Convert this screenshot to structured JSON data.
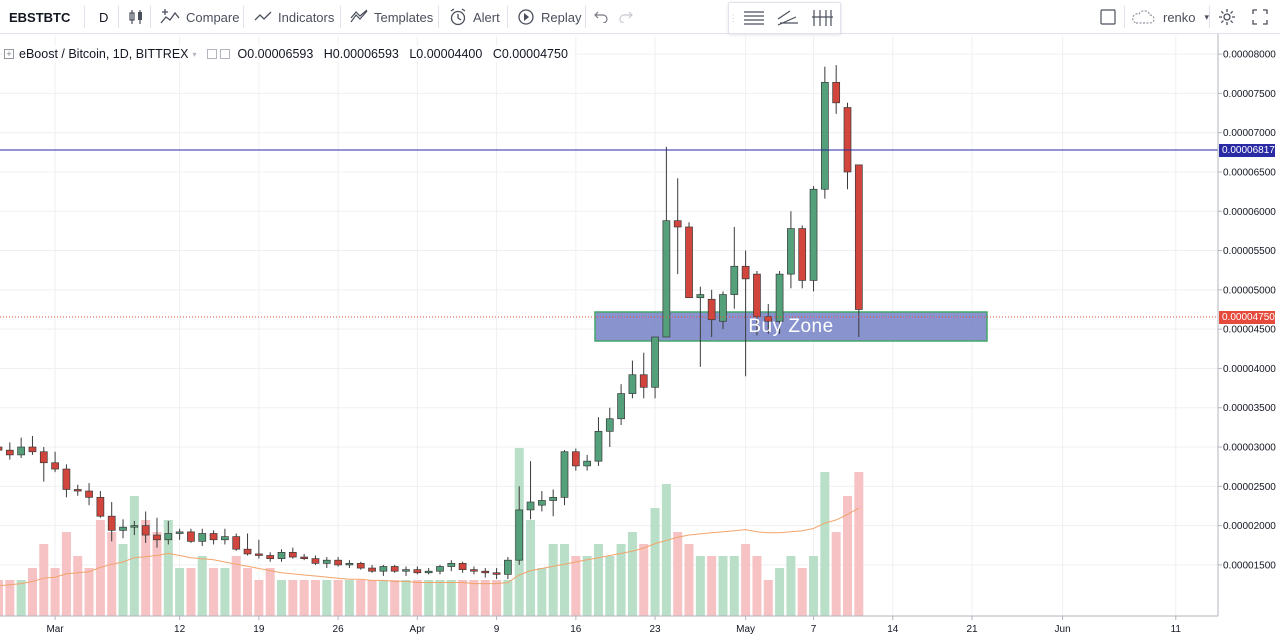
{
  "toolbar": {
    "symbol": "EBSTBTC",
    "interval": "D",
    "compare": "Compare",
    "indicators": "Indicators",
    "templates": "Templates",
    "alert": "Alert",
    "replay": "Replay",
    "layout_name": "renko",
    "icons": [
      "candles-icon",
      "compare-icon",
      "indicators-icon",
      "templates-icon",
      "alert-icon",
      "replay-icon",
      "undo-icon",
      "redo-icon",
      "horizontal-lines-icon",
      "trend-lines-icon",
      "ticks-icon",
      "square-icon",
      "cloud-icon",
      "chevron-down-icon",
      "gear-icon",
      "fullscreen-icon"
    ]
  },
  "legend": {
    "title": "eBoost / Bitcoin, 1D, BITTREX",
    "open": "O0.00006593",
    "high": "H0.00006593",
    "low": "L0.00004400",
    "close": "C0.00004750"
  },
  "annotations": {
    "buy_zone_label": "Buy Zone",
    "horizontal_line_price": "0.00006817",
    "last_price": "0.00004750"
  },
  "colors": {
    "up": "#53a07a",
    "down": "#d2453c",
    "line": "#2a2aa5",
    "buy_zone": "#7481c7",
    "buy_zone_border": "#45a56a",
    "last_price": "#e54a3c",
    "volume_up": "#b9dfc8",
    "volume_down": "#f6c2c4",
    "ma": "#f2a46a"
  },
  "chart_data": {
    "type": "candlestick",
    "title": "eBoost / Bitcoin, 1D, BITTREX",
    "y_ticks": [
      "0.00001500",
      "0.00002000",
      "0.00002500",
      "0.00003000",
      "0.00003500",
      "0.00004000",
      "0.00004500",
      "0.00005000",
      "0.00005500",
      "0.00006000",
      "0.00006500",
      "0.00007000",
      "0.00007500",
      "0.00008000"
    ],
    "x_ticks": [
      "Mar",
      "12",
      "19",
      "26",
      "Apr",
      "9",
      "16",
      "23",
      "May",
      "7",
      "14",
      "21",
      "Jun",
      "11"
    ],
    "ylim": [
      8.5e-06,
      8.23e-05
    ],
    "start_date": "2018-02-24",
    "candles": [
      [
        3e-05,
        3.08e-05,
        2.9e-05,
        2.96e-05,
        3
      ],
      [
        2.96e-05,
        3.06e-05,
        2.84e-05,
        2.9e-05,
        3
      ],
      [
        2.9e-05,
        3.12e-05,
        2.86e-05,
        3e-05,
        3
      ],
      [
        3e-05,
        3.14e-05,
        2.9e-05,
        2.94e-05,
        4
      ],
      [
        2.94e-05,
        3e-05,
        2.56e-05,
        2.8e-05,
        6
      ],
      [
        2.8e-05,
        2.94e-05,
        2.68e-05,
        2.72e-05,
        4
      ],
      [
        2.72e-05,
        2.78e-05,
        2.36e-05,
        2.46e-05,
        7
      ],
      [
        2.46e-05,
        2.52e-05,
        2.38e-05,
        2.44e-05,
        5
      ],
      [
        2.44e-05,
        2.54e-05,
        2.26e-05,
        2.36e-05,
        4
      ],
      [
        2.36e-05,
        2.44e-05,
        2.1e-05,
        2.12e-05,
        8
      ],
      [
        2.12e-05,
        2.3e-05,
        1.8e-05,
        1.94e-05,
        7
      ],
      [
        1.94e-05,
        2.08e-05,
        1.84e-05,
        1.98e-05,
        6
      ],
      [
        1.98e-05,
        2.06e-05,
        1.88e-05,
        2e-05,
        10
      ],
      [
        2e-05,
        2.18e-05,
        1.78e-05,
        1.88e-05,
        8
      ],
      [
        1.88e-05,
        2.1e-05,
        1.72e-05,
        1.82e-05,
        7
      ],
      [
        1.82e-05,
        2.06e-05,
        1.76e-05,
        1.9e-05,
        8
      ],
      [
        1.9e-05,
        1.96e-05,
        1.82e-05,
        1.92e-05,
        4
      ],
      [
        1.92e-05,
        1.96e-05,
        1.78e-05,
        1.8e-05,
        4
      ],
      [
        1.8e-05,
        1.96e-05,
        1.74e-05,
        1.9e-05,
        5
      ],
      [
        1.9e-05,
        1.94e-05,
        1.76e-05,
        1.82e-05,
        4
      ],
      [
        1.82e-05,
        1.96e-05,
        1.76e-05,
        1.86e-05,
        4
      ],
      [
        1.86e-05,
        1.9e-05,
        1.68e-05,
        1.7e-05,
        5
      ],
      [
        1.7e-05,
        1.9e-05,
        1.62e-05,
        1.64e-05,
        4
      ],
      [
        1.64e-05,
        1.82e-05,
        1.58e-05,
        1.62e-05,
        3
      ],
      [
        1.62e-05,
        1.66e-05,
        1.54e-05,
        1.58e-05,
        4
      ],
      [
        1.58e-05,
        1.7e-05,
        1.54e-05,
        1.66e-05,
        3
      ],
      [
        1.66e-05,
        1.72e-05,
        1.58e-05,
        1.6e-05,
        3
      ],
      [
        1.6e-05,
        1.64e-05,
        1.56e-05,
        1.58e-05,
        3
      ],
      [
        1.58e-05,
        1.62e-05,
        1.5e-05,
        1.52e-05,
        3
      ],
      [
        1.52e-05,
        1.6e-05,
        1.46e-05,
        1.56e-05,
        3
      ],
      [
        1.56e-05,
        1.6e-05,
        1.48e-05,
        1.5e-05,
        3
      ],
      [
        1.5e-05,
        1.56e-05,
        1.46e-05,
        1.52e-05,
        3
      ],
      [
        1.52e-05,
        1.54e-05,
        1.44e-05,
        1.46e-05,
        3
      ],
      [
        1.46e-05,
        1.5e-05,
        1.4e-05,
        1.42e-05,
        3
      ],
      [
        1.42e-05,
        1.5e-05,
        1.36e-05,
        1.48e-05,
        3
      ],
      [
        1.48e-05,
        1.5e-05,
        1.4e-05,
        1.42e-05,
        3
      ],
      [
        1.42e-05,
        1.48e-05,
        1.36e-05,
        1.44e-05,
        3
      ],
      [
        1.44e-05,
        1.48e-05,
        1.38e-05,
        1.4e-05,
        3
      ],
      [
        1.4e-05,
        1.46e-05,
        1.38e-05,
        1.42e-05,
        3
      ],
      [
        1.42e-05,
        1.5e-05,
        1.38e-05,
        1.48e-05,
        3
      ],
      [
        1.48e-05,
        1.56e-05,
        1.42e-05,
        1.52e-05,
        3
      ],
      [
        1.52e-05,
        1.54e-05,
        1.4e-05,
        1.44e-05,
        3
      ],
      [
        1.44e-05,
        1.48e-05,
        1.38e-05,
        1.42e-05,
        3
      ],
      [
        1.42e-05,
        1.46e-05,
        1.34e-05,
        1.4e-05,
        3
      ],
      [
        1.4e-05,
        1.46e-05,
        1.32e-05,
        1.38e-05,
        3
      ],
      [
        1.38e-05,
        1.6e-05,
        1.32e-05,
        1.56e-05,
        3
      ],
      [
        1.56e-05,
        2.5e-05,
        1.5e-05,
        2.2e-05,
        14
      ],
      [
        2.2e-05,
        2.82e-05,
        2.08e-05,
        2.3e-05,
        8
      ],
      [
        2.26e-05,
        2.44e-05,
        2.18e-05,
        2.32e-05,
        4
      ],
      [
        2.32e-05,
        2.46e-05,
        2.12e-05,
        2.36e-05,
        6
      ],
      [
        2.36e-05,
        2.96e-05,
        2.26e-05,
        2.94e-05,
        6
      ],
      [
        2.94e-05,
        2.98e-05,
        2.7e-05,
        2.76e-05,
        5
      ],
      [
        2.76e-05,
        2.9e-05,
        2.7e-05,
        2.82e-05,
        5
      ],
      [
        2.82e-05,
        3.38e-05,
        2.76e-05,
        3.2e-05,
        6
      ],
      [
        3.2e-05,
        3.5e-05,
        3e-05,
        3.36e-05,
        5
      ],
      [
        3.36e-05,
        3.8e-05,
        3.28e-05,
        3.68e-05,
        6
      ],
      [
        3.68e-05,
        4.1e-05,
        3.62e-05,
        3.92e-05,
        7
      ],
      [
        3.92e-05,
        4.2e-05,
        3.62e-05,
        3.76e-05,
        6
      ],
      [
        3.76e-05,
        4.38e-05,
        3.62e-05,
        4.4e-05,
        9
      ],
      [
        4.4e-05,
        6.82e-05,
        4.4e-05,
        5.88e-05,
        11
      ],
      [
        5.88e-05,
        6.42e-05,
        5.2e-05,
        5.8e-05,
        7
      ],
      [
        5.8e-05,
        5.86e-05,
        4.94e-05,
        4.9e-05,
        6
      ],
      [
        4.9e-05,
        5.04e-05,
        4.02e-05,
        4.94e-05,
        5
      ],
      [
        4.88e-05,
        5e-05,
        4.4e-05,
        4.62e-05,
        5
      ],
      [
        4.6e-05,
        4.98e-05,
        4.5e-05,
        4.94e-05,
        5
      ],
      [
        4.94e-05,
        5.8e-05,
        4.76e-05,
        5.3e-05,
        5
      ],
      [
        5.3e-05,
        5.5e-05,
        3.9e-05,
        5.14e-05,
        6
      ],
      [
        5.2e-05,
        5.24e-05,
        4.42e-05,
        4.66e-05,
        5
      ],
      [
        4.66e-05,
        4.82e-05,
        4.44e-05,
        4.6e-05,
        3
      ],
      [
        4.6e-05,
        5.24e-05,
        4.44e-05,
        5.2e-05,
        4
      ],
      [
        5.2e-05,
        6e-05,
        5.02e-05,
        5.78e-05,
        5
      ],
      [
        5.78e-05,
        5.82e-05,
        5.02e-05,
        5.12e-05,
        4
      ],
      [
        5.12e-05,
        6.32e-05,
        4.98e-05,
        6.28e-05,
        5
      ],
      [
        6.28e-05,
        7.84e-05,
        6.16e-05,
        7.64e-05,
        12
      ],
      [
        7.64e-05,
        7.86e-05,
        7.24e-05,
        7.38e-05,
        7
      ],
      [
        7.32e-05,
        7.38e-05,
        6.28e-05,
        6.5e-05,
        10
      ],
      [
        6.59e-05,
        6.59e-05,
        4.4e-05,
        4.75e-05,
        12
      ]
    ],
    "volume_ma": [
      2.8,
      2.9,
      3.0,
      3.2,
      3.5,
      3.6,
      3.9,
      4.0,
      4.1,
      4.5,
      4.8,
      5.0,
      5.4,
      5.5,
      5.6,
      5.8,
      5.6,
      5.4,
      5.3,
      5.2,
      5.0,
      4.8,
      4.6,
      4.4,
      4.2,
      4.0,
      3.9,
      3.8,
      3.7,
      3.6,
      3.5,
      3.4,
      3.4,
      3.3,
      3.3,
      3.2,
      3.2,
      3.1,
      3.1,
      3.1,
      3.1,
      3.1,
      3.0,
      3.0,
      3.0,
      3.1,
      3.8,
      4.2,
      4.4,
      4.6,
      4.8,
      5.0,
      5.2,
      5.4,
      5.6,
      5.8,
      6.0,
      6.3,
      6.7,
      7.0,
      7.3,
      7.5,
      7.6,
      7.7,
      7.8,
      7.9,
      8.0,
      7.8,
      7.7,
      7.7,
      7.8,
      7.9,
      8.1,
      8.6,
      8.9,
      9.4,
      10.0
    ]
  }
}
